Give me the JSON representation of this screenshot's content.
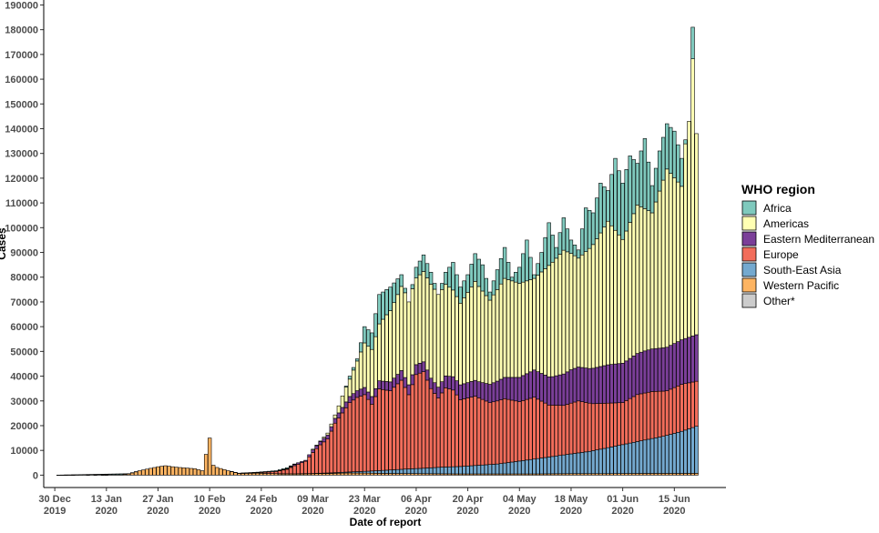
{
  "chart_data": {
    "type": "bar",
    "stacked": true,
    "xlabel": "Date of report",
    "ylabel": "Cases",
    "ylim": [
      -5000,
      192000
    ],
    "y_ticks": [
      0,
      10000,
      20000,
      30000,
      40000,
      50000,
      60000,
      70000,
      80000,
      90000,
      100000,
      110000,
      120000,
      130000,
      140000,
      150000,
      160000,
      170000,
      180000,
      190000
    ],
    "x_range": [
      "2019-12-27",
      "2020-06-29"
    ],
    "x_ticks": [
      {
        "date": "2019-12-30",
        "label": [
          "30 Dec",
          "2019"
        ]
      },
      {
        "date": "2020-01-13",
        "label": [
          "13 Jan",
          "2020"
        ]
      },
      {
        "date": "2020-01-27",
        "label": [
          "27 Jan",
          "2020"
        ]
      },
      {
        "date": "2020-02-10",
        "label": [
          "10 Feb",
          "2020"
        ]
      },
      {
        "date": "2020-02-24",
        "label": [
          "24 Feb",
          "2020"
        ]
      },
      {
        "date": "2020-03-09",
        "label": [
          "09 Mar",
          "2020"
        ]
      },
      {
        "date": "2020-03-23",
        "label": [
          "23 Mar",
          "2020"
        ]
      },
      {
        "date": "2020-04-06",
        "label": [
          "06 Apr",
          "2020"
        ]
      },
      {
        "date": "2020-04-20",
        "label": [
          "20 Apr",
          "2020"
        ]
      },
      {
        "date": "2020-05-04",
        "label": [
          "04 May",
          "2020"
        ]
      },
      {
        "date": "2020-05-18",
        "label": [
          "18 May",
          "2020"
        ]
      },
      {
        "date": "2020-06-01",
        "label": [
          "01 Jun",
          "2020"
        ]
      },
      {
        "date": "2020-06-15",
        "label": [
          "15 Jun",
          "2020"
        ]
      }
    ],
    "legend": {
      "title": "WHO region",
      "position": "right",
      "entries": [
        {
          "name": "Africa",
          "color": "#7fc9bd"
        },
        {
          "name": "Americas",
          "color": "#ffffb3"
        },
        {
          "name": "Eastern Mediterranean",
          "color": "#7b3f99"
        },
        {
          "name": "Europe",
          "color": "#f26d5b"
        },
        {
          "name": "South-East Asia",
          "color": "#74a9cf"
        },
        {
          "name": "Western Pacific",
          "color": "#fdb462"
        },
        {
          "name": "Other*",
          "color": "#cccccc"
        }
      ]
    },
    "start_date": "2019-12-30",
    "end_date": "2020-06-21",
    "anchors": {
      "total": [
        [
          0,
          0
        ],
        [
          20,
          600
        ],
        [
          23,
          1800
        ],
        [
          28,
          3400
        ],
        [
          30,
          3800
        ],
        [
          33,
          3200
        ],
        [
          38,
          2600
        ],
        [
          40,
          1800
        ],
        [
          42,
          15000
        ],
        [
          43,
          4000
        ],
        [
          44,
          3100
        ],
        [
          47,
          1800
        ],
        [
          50,
          800
        ],
        [
          55,
          1200
        ],
        [
          60,
          1800
        ],
        [
          63,
          3000
        ],
        [
          65,
          4500
        ],
        [
          68,
          6000
        ],
        [
          70,
          10500
        ],
        [
          72,
          13800
        ],
        [
          74,
          17000
        ],
        [
          77,
          28000
        ],
        [
          78,
          32000
        ],
        [
          80,
          40000
        ],
        [
          82,
          47000
        ],
        [
          84,
          60000
        ],
        [
          86,
          57500
        ],
        [
          88,
          73000
        ],
        [
          91,
          76000
        ],
        [
          94,
          81000
        ],
        [
          96,
          70000
        ],
        [
          98,
          84000
        ],
        [
          100,
          89000
        ],
        [
          102,
          82000
        ],
        [
          104,
          73000
        ],
        [
          106,
          82000
        ],
        [
          108,
          86000
        ],
        [
          110,
          76000
        ],
        [
          112,
          81000
        ],
        [
          114,
          89500
        ],
        [
          116,
          85000
        ],
        [
          118,
          74000
        ],
        [
          120,
          83000
        ],
        [
          122,
          92000
        ],
        [
          124,
          80000
        ],
        [
          126,
          84000
        ],
        [
          128,
          95000
        ],
        [
          130,
          81000
        ],
        [
          132,
          90000
        ],
        [
          134,
          102000
        ],
        [
          136,
          92000
        ],
        [
          138,
          104000
        ],
        [
          140,
          95000
        ],
        [
          142,
          91000
        ],
        [
          144,
          108000
        ],
        [
          146,
          106000
        ],
        [
          148,
          118000
        ],
        [
          150,
          115000
        ],
        [
          152,
          128000
        ],
        [
          154,
          118000
        ],
        [
          156,
          129000
        ],
        [
          158,
          126000
        ],
        [
          160,
          136000
        ],
        [
          162,
          117000
        ],
        [
          164,
          131000
        ],
        [
          166,
          142000
        ],
        [
          168,
          139000
        ],
        [
          170,
          128000
        ],
        [
          172,
          143000
        ],
        [
          173,
          181000
        ],
        [
          174,
          138000
        ],
        [
          175,
          139000
        ],
        [
          176,
          183000
        ],
        [
          177,
          152000
        ],
        [
          178,
          134000
        ],
        [
          179,
          135000
        ],
        [
          180,
          167000
        ]
      ],
      "amer": [
        [
          0,
          0
        ],
        [
          60,
          0
        ],
        [
          65,
          100
        ],
        [
          70,
          600
        ],
        [
          75,
          2500
        ],
        [
          78,
          5000
        ],
        [
          80,
          7000
        ],
        [
          82,
          12000
        ],
        [
          84,
          18000
        ],
        [
          86,
          19000
        ],
        [
          90,
          27000
        ],
        [
          94,
          34000
        ],
        [
          98,
          35000
        ],
        [
          102,
          38000
        ],
        [
          106,
          37000
        ],
        [
          110,
          33000
        ],
        [
          114,
          40000
        ],
        [
          118,
          34000
        ],
        [
          122,
          40000
        ],
        [
          126,
          38000
        ],
        [
          130,
          37000
        ],
        [
          134,
          45000
        ],
        [
          138,
          50000
        ],
        [
          142,
          44000
        ],
        [
          146,
          50000
        ],
        [
          150,
          58000
        ],
        [
          154,
          50000
        ],
        [
          158,
          60000
        ],
        [
          162,
          55000
        ],
        [
          166,
          72000
        ],
        [
          170,
          62000
        ],
        [
          173,
          112000
        ],
        [
          175,
          76000
        ],
        [
          176,
          97000
        ],
        [
          178,
          70000
        ],
        [
          180,
          97000
        ]
      ],
      "emed": [
        [
          0,
          0
        ],
        [
          60,
          0
        ],
        [
          63,
          200
        ],
        [
          65,
          500
        ],
        [
          70,
          1000
        ],
        [
          75,
          1800
        ],
        [
          80,
          2500
        ],
        [
          85,
          3000
        ],
        [
          90,
          3500
        ],
        [
          95,
          4000
        ],
        [
          100,
          4000
        ],
        [
          105,
          4500
        ],
        [
          110,
          6000
        ],
        [
          115,
          6500
        ],
        [
          120,
          8000
        ],
        [
          125,
          9500
        ],
        [
          130,
          11000
        ],
        [
          135,
          11500
        ],
        [
          140,
          13500
        ],
        [
          145,
          14000
        ],
        [
          150,
          15500
        ],
        [
          155,
          16000
        ],
        [
          160,
          17000
        ],
        [
          165,
          17500
        ],
        [
          170,
          18000
        ],
        [
          175,
          19000
        ],
        [
          180,
          19000
        ]
      ],
      "eur": [
        [
          0,
          0
        ],
        [
          40,
          0
        ],
        [
          55,
          200
        ],
        [
          60,
          900
        ],
        [
          63,
          1800
        ],
        [
          65,
          3300
        ],
        [
          68,
          5000
        ],
        [
          70,
          8500
        ],
        [
          72,
          11500
        ],
        [
          74,
          13700
        ],
        [
          76,
          20000
        ],
        [
          78,
          24000
        ],
        [
          80,
          28000
        ],
        [
          82,
          30000
        ],
        [
          84,
          31000
        ],
        [
          86,
          27000
        ],
        [
          88,
          33000
        ],
        [
          91,
          32000
        ],
        [
          94,
          36000
        ],
        [
          96,
          30000
        ],
        [
          98,
          38000
        ],
        [
          100,
          39000
        ],
        [
          102,
          32000
        ],
        [
          104,
          28000
        ],
        [
          106,
          32000
        ],
        [
          108,
          31000
        ],
        [
          110,
          27000
        ],
        [
          114,
          28000
        ],
        [
          118,
          25000
        ],
        [
          122,
          26000
        ],
        [
          126,
          24000
        ],
        [
          130,
          25000
        ],
        [
          134,
          21000
        ],
        [
          138,
          20000
        ],
        [
          142,
          21000
        ],
        [
          146,
          19000
        ],
        [
          150,
          18000
        ],
        [
          154,
          17000
        ],
        [
          158,
          19000
        ],
        [
          162,
          19000
        ],
        [
          166,
          18000
        ],
        [
          170,
          19000
        ],
        [
          175,
          18000
        ],
        [
          178,
          19000
        ],
        [
          180,
          18500
        ]
      ],
      "sea": [
        [
          0,
          0
        ],
        [
          60,
          0
        ],
        [
          70,
          80
        ],
        [
          80,
          400
        ],
        [
          85,
          800
        ],
        [
          90,
          1300
        ],
        [
          95,
          1800
        ],
        [
          100,
          2200
        ],
        [
          105,
          2700
        ],
        [
          110,
          3000
        ],
        [
          115,
          3500
        ],
        [
          120,
          4000
        ],
        [
          125,
          5000
        ],
        [
          130,
          6000
        ],
        [
          135,
          7000
        ],
        [
          140,
          8000
        ],
        [
          145,
          9000
        ],
        [
          150,
          10500
        ],
        [
          155,
          12000
        ],
        [
          160,
          13500
        ],
        [
          165,
          15000
        ],
        [
          170,
          17000
        ],
        [
          175,
          19500
        ],
        [
          180,
          22500
        ]
      ],
      "wp": [
        [
          0,
          0
        ],
        [
          18,
          200
        ],
        [
          20,
          500
        ],
        [
          23,
          1800
        ],
        [
          28,
          3400
        ],
        [
          30,
          3800
        ],
        [
          33,
          3200
        ],
        [
          38,
          2600
        ],
        [
          40,
          1800
        ],
        [
          42,
          15000
        ],
        [
          43,
          4000
        ],
        [
          44,
          3100
        ],
        [
          47,
          1800
        ],
        [
          50,
          700
        ],
        [
          55,
          800
        ],
        [
          60,
          600
        ],
        [
          65,
          500
        ],
        [
          70,
          600
        ],
        [
          75,
          700
        ],
        [
          80,
          900
        ],
        [
          85,
          800
        ],
        [
          90,
          700
        ],
        [
          100,
          600
        ],
        [
          110,
          500
        ],
        [
          120,
          500
        ],
        [
          130,
          500
        ],
        [
          140,
          600
        ],
        [
          150,
          600
        ],
        [
          160,
          700
        ],
        [
          170,
          700
        ],
        [
          180,
          800
        ]
      ]
    },
    "early_points": [
      [
        3,
        -100
      ],
      [
        5,
        -100
      ],
      [
        9,
        -100
      ],
      [
        11,
        -100
      ],
      [
        13,
        -100
      ],
      [
        14,
        -100
      ]
    ]
  }
}
